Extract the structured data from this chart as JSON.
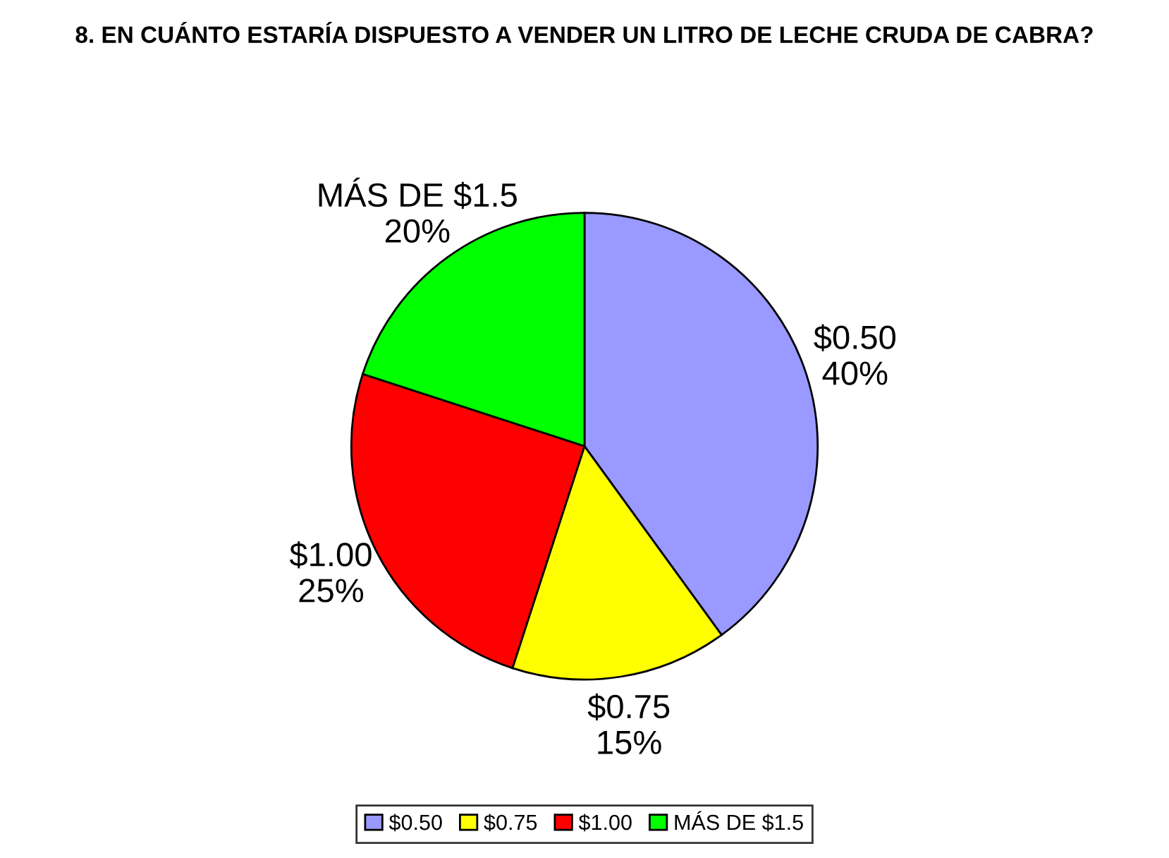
{
  "chart_data": {
    "type": "pie",
    "title": "8. EN CUÁNTO ESTARÍA DISPUESTO A VENDER UN LITRO DE LECHE CRUDA DE CABRA?",
    "categories": [
      "$0.50",
      "$0.75",
      "$1.00",
      "MÁS DE $1.5"
    ],
    "values": [
      40,
      15,
      25,
      20
    ],
    "value_labels": [
      "40%",
      "15%",
      "25%",
      "20%"
    ],
    "colors": [
      "#9999ff",
      "#ffff00",
      "#ff0000",
      "#00ff00"
    ],
    "legend": "bottom"
  }
}
